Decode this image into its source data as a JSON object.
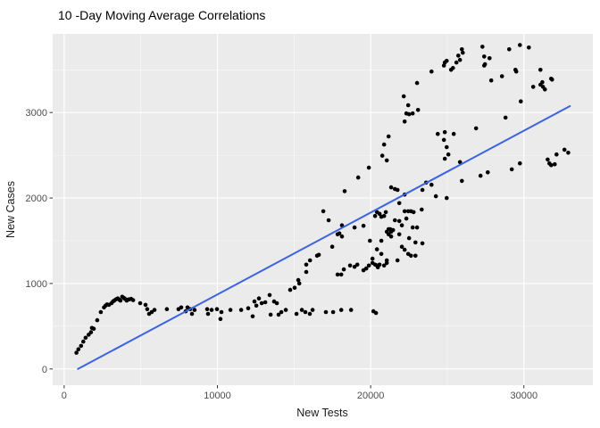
{
  "chart_data": {
    "type": "scatter",
    "title": "10 -Day Moving Average Correlations",
    "xlabel": "New Tests",
    "ylabel": "New Cases",
    "xlim": [
      -750,
      34500
    ],
    "ylim": [
      -190,
      3920
    ],
    "x_ticks": [
      0,
      10000,
      20000,
      30000
    ],
    "x_minor_ticks": [
      5000,
      15000,
      25000
    ],
    "y_ticks": [
      0,
      1000,
      2000,
      3000
    ],
    "y_minor_ticks": [
      500,
      1500,
      2500,
      3500
    ],
    "grid": true,
    "legend_position": "none",
    "colors": {
      "panel_background": "#EBEBEB",
      "major_grid": "#FFFFFF",
      "minor_grid": "#F7F7F7",
      "point": "#000000",
      "trend_line": "#3C63E0",
      "tick_label": "#4d4d4d",
      "tick_mark": "#333333"
    },
    "series": [
      {
        "name": "moving-average-points",
        "type": "scatter",
        "points": [
          [
            800,
            190
          ],
          [
            930,
            230
          ],
          [
            1100,
            270
          ],
          [
            1250,
            320
          ],
          [
            1400,
            365
          ],
          [
            1600,
            400
          ],
          [
            1750,
            430
          ],
          [
            1810,
            480
          ],
          [
            1930,
            470
          ],
          [
            2160,
            570
          ],
          [
            2390,
            665
          ],
          [
            2600,
            720
          ],
          [
            2700,
            740
          ],
          [
            2800,
            755
          ],
          [
            2920,
            750
          ],
          [
            3090,
            770
          ],
          [
            3180,
            790
          ],
          [
            3270,
            800
          ],
          [
            3380,
            815
          ],
          [
            3500,
            825
          ],
          [
            3600,
            810
          ],
          [
            3670,
            800
          ],
          [
            3790,
            845
          ],
          [
            3900,
            830
          ],
          [
            3970,
            820
          ],
          [
            4080,
            800
          ],
          [
            4140,
            810
          ],
          [
            4250,
            815
          ],
          [
            4370,
            820
          ],
          [
            4500,
            805
          ],
          [
            4960,
            770
          ],
          [
            5310,
            750
          ],
          [
            5420,
            700
          ],
          [
            5540,
            645
          ],
          [
            5710,
            665
          ],
          [
            5890,
            690
          ],
          [
            6700,
            700
          ],
          [
            7460,
            700
          ],
          [
            7640,
            720
          ],
          [
            7930,
            675
          ],
          [
            8050,
            720
          ],
          [
            8220,
            700
          ],
          [
            8340,
            645
          ],
          [
            8510,
            690
          ],
          [
            9330,
            700
          ],
          [
            9390,
            645
          ],
          [
            9620,
            690
          ],
          [
            9970,
            700
          ],
          [
            10200,
            585
          ],
          [
            10260,
            665
          ],
          [
            10850,
            690
          ],
          [
            11550,
            690
          ],
          [
            12010,
            710
          ],
          [
            12300,
            615
          ],
          [
            12420,
            790
          ],
          [
            12540,
            740
          ],
          [
            12710,
            825
          ],
          [
            12890,
            770
          ],
          [
            13120,
            780
          ],
          [
            13410,
            865
          ],
          [
            13470,
            635
          ],
          [
            13700,
            790
          ],
          [
            13880,
            770
          ],
          [
            13990,
            635
          ],
          [
            14170,
            665
          ],
          [
            14460,
            690
          ],
          [
            15160,
            645
          ],
          [
            15510,
            690
          ],
          [
            15740,
            665
          ],
          [
            16030,
            645
          ],
          [
            16210,
            690
          ],
          [
            17080,
            665
          ],
          [
            17550,
            665
          ],
          [
            18080,
            690
          ],
          [
            18720,
            690
          ],
          [
            20180,
            675
          ],
          [
            20350,
            655
          ],
          [
            14750,
            925
          ],
          [
            15040,
            950
          ],
          [
            15340,
            1000
          ],
          [
            15280,
            1040
          ],
          [
            15800,
            1135
          ],
          [
            15800,
            1220
          ],
          [
            16040,
            1270
          ],
          [
            16500,
            1325
          ],
          [
            16620,
            1335
          ],
          [
            17490,
            1430
          ],
          [
            17840,
            1575
          ],
          [
            17960,
            1585
          ],
          [
            18130,
            1550
          ],
          [
            17840,
            1105
          ],
          [
            18080,
            1105
          ],
          [
            18250,
            1165
          ],
          [
            18660,
            1210
          ],
          [
            18950,
            1195
          ],
          [
            19130,
            1220
          ],
          [
            19530,
            1155
          ],
          [
            19710,
            1175
          ],
          [
            19890,
            1210
          ],
          [
            20120,
            1240
          ],
          [
            20410,
            1210
          ],
          [
            20580,
            1220
          ],
          [
            20880,
            1210
          ],
          [
            16910,
            1845
          ],
          [
            17260,
            1740
          ],
          [
            18130,
            1680
          ],
          [
            18950,
            1655
          ],
          [
            19530,
            1675
          ],
          [
            19950,
            1500
          ],
          [
            20120,
            1290
          ],
          [
            20290,
            1220
          ],
          [
            20470,
            1190
          ],
          [
            20410,
            1400
          ],
          [
            20700,
            1345
          ],
          [
            20700,
            1500
          ],
          [
            21050,
            1270
          ],
          [
            21050,
            1240
          ],
          [
            21750,
            1270
          ],
          [
            20290,
            1790
          ],
          [
            20410,
            1835
          ],
          [
            20580,
            1815
          ],
          [
            20700,
            1780
          ],
          [
            20880,
            1790
          ],
          [
            20990,
            1835
          ],
          [
            21050,
            1605
          ],
          [
            21170,
            1635
          ],
          [
            21170,
            1575
          ],
          [
            21280,
            1635
          ],
          [
            21340,
            1605
          ],
          [
            21340,
            1550
          ],
          [
            21460,
            1625
          ],
          [
            21580,
            1740
          ],
          [
            21870,
            1730
          ],
          [
            21870,
            1575
          ],
          [
            22040,
            1680
          ],
          [
            22040,
            1430
          ],
          [
            22220,
            1845
          ],
          [
            22220,
            1395
          ],
          [
            22330,
            1760
          ],
          [
            22450,
            1845
          ],
          [
            22450,
            1345
          ],
          [
            22510,
            1530
          ],
          [
            22630,
            1845
          ],
          [
            22630,
            1325
          ],
          [
            22740,
            1655
          ],
          [
            22800,
            1835
          ],
          [
            22920,
            1480
          ],
          [
            22920,
            1325
          ],
          [
            23030,
            1655
          ],
          [
            23330,
            1865
          ],
          [
            23380,
            1470
          ],
          [
            18300,
            2080
          ],
          [
            19190,
            2240
          ],
          [
            19880,
            2355
          ],
          [
            21340,
            2125
          ],
          [
            21580,
            2105
          ],
          [
            21750,
            2095
          ],
          [
            21870,
            1940
          ],
          [
            22220,
            2040
          ],
          [
            23380,
            2095
          ],
          [
            23620,
            2180
          ],
          [
            23970,
            2155
          ],
          [
            24260,
            2020
          ],
          [
            24960,
            2000
          ],
          [
            25830,
            2420
          ],
          [
            25950,
            2200
          ],
          [
            20760,
            2495
          ],
          [
            20880,
            2625
          ],
          [
            21050,
            2440
          ],
          [
            21170,
            2720
          ],
          [
            22160,
            3190
          ],
          [
            22220,
            2895
          ],
          [
            22330,
            2990
          ],
          [
            22450,
            3085
          ],
          [
            22510,
            2980
          ],
          [
            22740,
            2990
          ],
          [
            23090,
            3030
          ],
          [
            24780,
            2680
          ],
          [
            24840,
            2460
          ],
          [
            24960,
            2595
          ],
          [
            25070,
            2510
          ],
          [
            28800,
            2940
          ],
          [
            29800,
            3130
          ],
          [
            30610,
            3300
          ],
          [
            24380,
            2750
          ],
          [
            24840,
            2770
          ],
          [
            25420,
            2750
          ],
          [
            26880,
            2815
          ],
          [
            23030,
            3345
          ],
          [
            23970,
            3480
          ],
          [
            24780,
            3550
          ],
          [
            24840,
            3585
          ],
          [
            24960,
            3605
          ],
          [
            25250,
            3500
          ],
          [
            25370,
            3520
          ],
          [
            25600,
            3585
          ],
          [
            25720,
            3665
          ],
          [
            25830,
            3615
          ],
          [
            25950,
            3740
          ],
          [
            26010,
            3700
          ],
          [
            27290,
            3770
          ],
          [
            27410,
            3655
          ],
          [
            27410,
            3550
          ],
          [
            27460,
            3565
          ],
          [
            27760,
            3635
          ],
          [
            27870,
            3375
          ],
          [
            28570,
            3425
          ],
          [
            29040,
            3740
          ],
          [
            29450,
            3500
          ],
          [
            29500,
            3480
          ],
          [
            29740,
            3790
          ],
          [
            30320,
            3760
          ],
          [
            31080,
            3500
          ],
          [
            31080,
            3325
          ],
          [
            31200,
            3355
          ],
          [
            31250,
            3300
          ],
          [
            31370,
            3270
          ],
          [
            31780,
            3395
          ],
          [
            31840,
            3385
          ],
          [
            27170,
            2260
          ],
          [
            27640,
            2300
          ],
          [
            29210,
            2335
          ],
          [
            29740,
            2405
          ],
          [
            31550,
            2450
          ],
          [
            31660,
            2405
          ],
          [
            31780,
            2385
          ],
          [
            32010,
            2395
          ],
          [
            32130,
            2510
          ],
          [
            32650,
            2565
          ],
          [
            32890,
            2530
          ]
        ]
      },
      {
        "name": "trend-line",
        "type": "line",
        "points": [
          [
            900,
            0
          ],
          [
            33000,
            3075
          ]
        ]
      }
    ]
  }
}
